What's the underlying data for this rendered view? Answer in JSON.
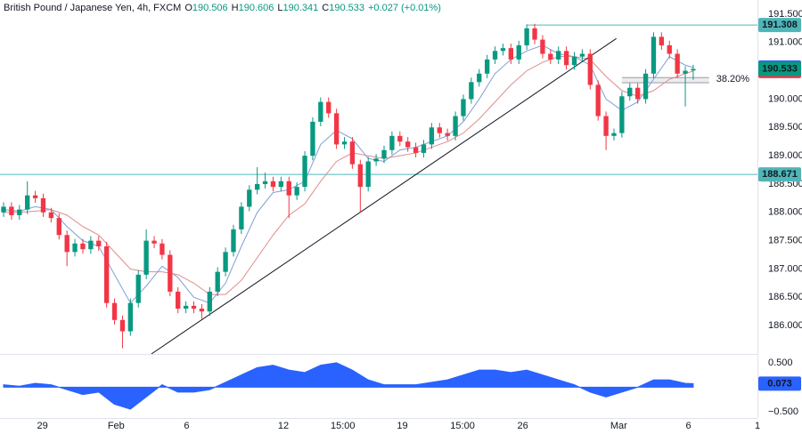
{
  "header": {
    "title": "British Pound / Japanese Yen, 4h, FXCM",
    "ohlc": [
      [
        "O",
        "190.506"
      ],
      [
        "H",
        "190.606"
      ],
      [
        "L",
        "190.341"
      ],
      [
        "C",
        "190.533"
      ]
    ],
    "change": "+0.027 (+0.01%)"
  },
  "chart_data": [
    {
      "type": "candlestick",
      "up_color": "#089981",
      "down_color": "#f23645",
      "xlim": [
        -0.45,
        95.1
      ],
      "ylim": [
        185.5,
        191.75
      ],
      "xticks": [
        {
          "value": 4.9,
          "label": "29"
        },
        {
          "value": 14.2,
          "label": "Feb"
        },
        {
          "value": 23.1,
          "label": "6"
        },
        {
          "value": 35.3,
          "label": "12"
        },
        {
          "value": 42.8,
          "label": "15:00"
        },
        {
          "value": 50.3,
          "label": "19"
        },
        {
          "value": 57.9,
          "label": "15:00"
        },
        {
          "value": 65.5,
          "label": "26"
        },
        {
          "value": 77.6,
          "label": "Mar"
        },
        {
          "value": 86.4,
          "label": "6"
        },
        {
          "value": 95.1,
          "label": "1"
        }
      ],
      "yticks": [
        {
          "value": 186,
          "label": "186.000"
        },
        {
          "value": 186.5,
          "label": "186.500"
        },
        {
          "value": 187,
          "label": "187.000"
        },
        {
          "value": 187.5,
          "label": "187.500"
        },
        {
          "value": 188,
          "label": "188.000"
        },
        {
          "value": 188.5,
          "label": "188.500"
        },
        {
          "value": 189,
          "label": "189.000"
        },
        {
          "value": 189.5,
          "label": "189.500"
        },
        {
          "value": 190,
          "label": "190.000"
        },
        {
          "value": 191,
          "label": "191.000"
        },
        {
          "value": 191.5,
          "label": "191.500"
        }
      ],
      "candles": [
        [
          188.0,
          188.18,
          187.92,
          188.1
        ],
        [
          188.1,
          188.18,
          187.87,
          187.95
        ],
        [
          187.95,
          188.13,
          187.87,
          188.05
        ],
        [
          188.05,
          188.55,
          187.97,
          188.3
        ],
        [
          188.3,
          188.38,
          188.17,
          188.25
        ],
        [
          188.25,
          188.33,
          187.92,
          188.0
        ],
        [
          188.0,
          188.08,
          187.82,
          187.9
        ],
        [
          187.9,
          187.98,
          187.52,
          187.6
        ],
        [
          187.6,
          187.68,
          187.05,
          187.3
        ],
        [
          187.3,
          187.53,
          187.22,
          187.45
        ],
        [
          187.45,
          187.53,
          187.27,
          187.35
        ],
        [
          187.35,
          187.58,
          187.27,
          187.5
        ],
        [
          187.5,
          187.58,
          187.32,
          187.4
        ],
        [
          187.4,
          187.48,
          186.32,
          186.4
        ],
        [
          186.4,
          186.48,
          186.02,
          186.1
        ],
        [
          186.1,
          186.18,
          185.6,
          185.9
        ],
        [
          185.9,
          186.48,
          185.82,
          186.4
        ],
        [
          186.4,
          186.98,
          186.32,
          186.9
        ],
        [
          186.9,
          187.7,
          186.82,
          187.5
        ],
        [
          187.5,
          187.58,
          187.37,
          187.45
        ],
        [
          187.45,
          187.53,
          187.17,
          187.25
        ],
        [
          187.25,
          187.33,
          186.52,
          186.6
        ],
        [
          186.6,
          186.68,
          186.22,
          186.3
        ],
        [
          186.3,
          186.43,
          186.22,
          186.35
        ],
        [
          186.35,
          186.43,
          186.22,
          186.3
        ],
        [
          186.3,
          186.38,
          186.12,
          186.25
        ],
        [
          186.25,
          186.68,
          186.17,
          186.6
        ],
        [
          186.6,
          187.03,
          186.52,
          186.95
        ],
        [
          186.95,
          187.38,
          186.87,
          187.3
        ],
        [
          187.3,
          187.78,
          187.22,
          187.7
        ],
        [
          187.7,
          188.18,
          187.62,
          188.1
        ],
        [
          188.1,
          188.48,
          188.02,
          188.4
        ],
        [
          188.4,
          188.8,
          188.32,
          188.5
        ],
        [
          188.5,
          188.7,
          188.42,
          188.55
        ],
        [
          188.55,
          188.63,
          188.37,
          188.45
        ],
        [
          188.45,
          188.63,
          188.37,
          188.55
        ],
        [
          188.55,
          188.63,
          187.9,
          188.3
        ],
        [
          188.3,
          188.53,
          188.22,
          188.45
        ],
        [
          188.45,
          189.08,
          188.37,
          189.0
        ],
        [
          189.0,
          189.68,
          188.92,
          189.6
        ],
        [
          189.6,
          190.03,
          189.52,
          189.95
        ],
        [
          189.95,
          190.03,
          189.67,
          189.75
        ],
        [
          189.75,
          189.83,
          189.12,
          189.2
        ],
        [
          189.2,
          189.33,
          189.12,
          189.25
        ],
        [
          189.25,
          189.33,
          188.77,
          188.85
        ],
        [
          188.85,
          188.93,
          188.0,
          188.45
        ],
        [
          188.45,
          188.98,
          188.37,
          188.9
        ],
        [
          188.9,
          189.03,
          188.82,
          188.95
        ],
        [
          188.95,
          189.18,
          188.87,
          189.1
        ],
        [
          189.1,
          189.43,
          189.02,
          189.35
        ],
        [
          189.35,
          189.43,
          189.17,
          189.25
        ],
        [
          189.25,
          189.33,
          189.07,
          189.15
        ],
        [
          189.15,
          189.23,
          188.97,
          189.05
        ],
        [
          189.05,
          189.28,
          188.97,
          189.2
        ],
        [
          189.2,
          189.58,
          189.12,
          189.5
        ],
        [
          189.5,
          189.58,
          189.32,
          189.4
        ],
        [
          189.4,
          189.48,
          189.27,
          189.35
        ],
        [
          189.35,
          189.78,
          189.27,
          189.7
        ],
        [
          189.7,
          190.08,
          189.62,
          190.0
        ],
        [
          190.0,
          190.38,
          189.92,
          190.3
        ],
        [
          190.3,
          190.53,
          190.22,
          190.45
        ],
        [
          190.45,
          190.78,
          190.37,
          190.7
        ],
        [
          190.7,
          190.93,
          190.62,
          190.85
        ],
        [
          190.85,
          190.98,
          190.77,
          190.9
        ],
        [
          190.9,
          190.98,
          190.62,
          190.7
        ],
        [
          190.7,
          191.03,
          190.62,
          190.95
        ],
        [
          190.95,
          191.32,
          190.87,
          191.25
        ],
        [
          191.25,
          191.33,
          190.97,
          191.05
        ],
        [
          191.05,
          191.13,
          190.72,
          190.8
        ],
        [
          190.8,
          190.88,
          190.62,
          190.7
        ],
        [
          190.7,
          190.93,
          190.62,
          190.85
        ],
        [
          190.85,
          190.93,
          190.52,
          190.6
        ],
        [
          190.6,
          190.83,
          190.52,
          190.75
        ],
        [
          190.75,
          190.88,
          190.67,
          190.8
        ],
        [
          190.8,
          190.88,
          190.17,
          190.25
        ],
        [
          190.25,
          190.33,
          189.62,
          189.7
        ],
        [
          189.7,
          189.78,
          189.1,
          189.35
        ],
        [
          189.35,
          189.48,
          189.27,
          189.4
        ],
        [
          189.4,
          190.13,
          189.32,
          190.05
        ],
        [
          190.05,
          190.28,
          189.97,
          190.2
        ],
        [
          190.2,
          190.28,
          189.92,
          190.0
        ],
        [
          190.0,
          190.53,
          189.92,
          190.45
        ],
        [
          190.45,
          191.18,
          190.37,
          191.1
        ],
        [
          191.1,
          191.18,
          190.87,
          190.95
        ],
        [
          190.95,
          191.03,
          190.72,
          190.8
        ],
        [
          190.8,
          190.88,
          190.37,
          190.45
        ],
        [
          190.45,
          190.58,
          189.87,
          190.5
        ],
        [
          190.506,
          190.606,
          190.341,
          190.533
        ]
      ],
      "moving_averages": [
        {
          "color": "#7e9fd6",
          "badge_color": "#2962ff",
          "x": [
            0,
            2,
            4,
            6,
            8,
            10,
            12,
            14,
            16,
            18,
            20,
            22,
            24,
            26,
            28,
            30,
            32,
            34,
            36,
            38,
            40,
            42,
            44,
            46,
            48,
            50,
            52,
            54,
            56,
            58,
            60,
            62,
            64,
            66,
            68,
            70,
            72,
            74,
            76,
            78,
            80,
            82,
            84,
            86,
            87
          ],
          "values": [
            188.05,
            188.02,
            188.1,
            188.05,
            187.75,
            187.5,
            187.4,
            186.9,
            186.4,
            186.7,
            187.05,
            186.85,
            186.5,
            186.4,
            186.75,
            187.4,
            188.0,
            188.35,
            188.4,
            188.55,
            189.2,
            189.45,
            189.3,
            188.95,
            188.9,
            189.1,
            189.15,
            189.25,
            189.35,
            189.6,
            190.0,
            190.45,
            190.7,
            190.85,
            190.95,
            190.8,
            190.75,
            190.6,
            190.0,
            189.8,
            189.95,
            190.35,
            190.75,
            190.6,
            190.558
          ]
        },
        {
          "color": "#e08b8b",
          "badge_color": "#f23645",
          "x": [
            0,
            2,
            4,
            6,
            8,
            10,
            12,
            14,
            16,
            18,
            20,
            22,
            24,
            26,
            28,
            30,
            32,
            34,
            36,
            38,
            40,
            42,
            44,
            46,
            48,
            50,
            52,
            54,
            56,
            58,
            60,
            62,
            64,
            66,
            68,
            70,
            72,
            74,
            76,
            78,
            80,
            82,
            84,
            86,
            87
          ],
          "values": [
            188.0,
            188.0,
            188.02,
            188.05,
            187.95,
            187.75,
            187.6,
            187.3,
            187.0,
            186.95,
            186.95,
            186.9,
            186.75,
            186.55,
            186.55,
            186.8,
            187.2,
            187.6,
            187.95,
            188.15,
            188.55,
            188.9,
            189.05,
            189.0,
            188.95,
            189.0,
            189.05,
            189.15,
            189.25,
            189.4,
            189.65,
            189.95,
            190.25,
            190.5,
            190.65,
            190.75,
            190.75,
            190.7,
            190.4,
            190.15,
            190.05,
            190.15,
            190.35,
            190.45,
            190.496
          ]
        }
      ],
      "levels": [
        {
          "value": 191.308,
          "x0": 66,
          "color": "#4fb6b8"
        },
        {
          "value": 188.671,
          "x0": -0.45,
          "color": "#4fb6b8"
        }
      ],
      "trendline": {
        "x": [
          18.65,
          77.3
        ],
        "y": [
          185.5,
          191.07
        ],
        "color": "#131722"
      },
      "fib": {
        "label": "38.20%",
        "x": [
          78,
          89
        ],
        "levels": [
          190.38,
          190.29
        ],
        "color": "#7e57c2"
      }
    },
    {
      "type": "area",
      "color": "#2962ff",
      "ylim": [
        -0.63,
        0.68
      ],
      "yticks": [
        {
          "value": 0.5,
          "label": "0.500"
        },
        {
          "value": -0.5,
          "label": "−0.500"
        }
      ],
      "x": [
        0,
        2,
        4,
        6,
        8,
        10,
        12,
        14,
        16,
        18,
        20,
        22,
        24,
        26,
        28,
        30,
        32,
        34,
        36,
        38,
        40,
        42,
        44,
        46,
        48,
        50,
        52,
        54,
        56,
        58,
        60,
        62,
        64,
        66,
        68,
        70,
        72,
        74,
        76,
        78,
        80,
        82,
        84,
        86,
        87
      ],
      "values": [
        0.05,
        0.02,
        0.08,
        0.05,
        -0.05,
        -0.15,
        -0.1,
        -0.35,
        -0.45,
        -0.2,
        0.05,
        -0.1,
        -0.1,
        -0.05,
        0.1,
        0.25,
        0.4,
        0.45,
        0.35,
        0.3,
        0.45,
        0.5,
        0.35,
        0.15,
        0.05,
        0.05,
        0.05,
        0.1,
        0.15,
        0.25,
        0.35,
        0.35,
        0.3,
        0.35,
        0.25,
        0.15,
        0.05,
        -0.1,
        -0.2,
        -0.1,
        0.0,
        0.15,
        0.15,
        0.08,
        0.073
      ]
    }
  ]
}
